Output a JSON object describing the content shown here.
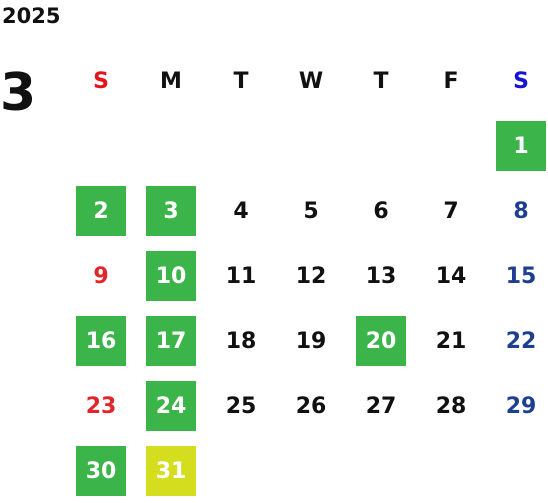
{
  "year": "2025",
  "month": "3",
  "weekdays": [
    {
      "label": "S",
      "color": "#e5141c"
    },
    {
      "label": "M",
      "color": "#111111"
    },
    {
      "label": "T",
      "color": "#111111"
    },
    {
      "label": "W",
      "color": "#111111"
    },
    {
      "label": "T",
      "color": "#111111"
    },
    {
      "label": "F",
      "color": "#111111"
    },
    {
      "label": "S",
      "color": "#1414d2"
    }
  ],
  "day_colors": [
    "#e0262b",
    "#111111",
    "#111111",
    "#111111",
    "#111111",
    "#111111",
    "#1e3f90"
  ],
  "highlight_text_color": "#ffffff",
  "weeks": [
    [
      null,
      null,
      null,
      null,
      null,
      null,
      {
        "day": 1,
        "fill": "#3bb54a"
      }
    ],
    [
      {
        "day": 2,
        "fill": "#3bb54a"
      },
      {
        "day": 3,
        "fill": "#3bb54a"
      },
      {
        "day": 4
      },
      {
        "day": 5
      },
      {
        "day": 6
      },
      {
        "day": 7
      },
      {
        "day": 8
      }
    ],
    [
      {
        "day": 9
      },
      {
        "day": 10,
        "fill": "#3bb54a"
      },
      {
        "day": 11
      },
      {
        "day": 12
      },
      {
        "day": 13
      },
      {
        "day": 14
      },
      {
        "day": 15
      }
    ],
    [
      {
        "day": 16,
        "fill": "#3bb54a"
      },
      {
        "day": 17,
        "fill": "#3bb54a"
      },
      {
        "day": 18
      },
      {
        "day": 19
      },
      {
        "day": 20,
        "fill": "#3bb54a"
      },
      {
        "day": 21
      },
      {
        "day": 22
      }
    ],
    [
      {
        "day": 23
      },
      {
        "day": 24,
        "fill": "#3bb54a"
      },
      {
        "day": 25
      },
      {
        "day": 26
      },
      {
        "day": 27
      },
      {
        "day": 28
      },
      {
        "day": 29
      }
    ],
    [
      {
        "day": 30,
        "fill": "#3bb54a"
      },
      {
        "day": 31,
        "fill": "#d5dd1f"
      },
      null,
      null,
      null,
      null,
      null
    ]
  ]
}
